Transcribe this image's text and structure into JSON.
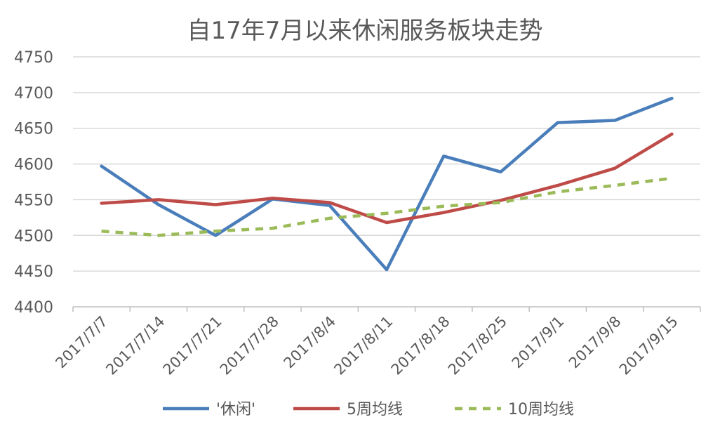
{
  "chart_data": {
    "type": "line",
    "title": "自17年7月以来休闲服务板块走势",
    "categories": [
      "2017/7/7",
      "2017/7/14",
      "2017/7/21",
      "2017/7/28",
      "2017/8/4",
      "2017/8/11",
      "2017/8/18",
      "2017/8/25",
      "2017/9/1",
      "2017/9/8",
      "2017/9/15"
    ],
    "ylim": [
      4400,
      4750
    ],
    "yticks": [
      4400,
      4450,
      4500,
      4550,
      4600,
      4650,
      4700,
      4750
    ],
    "grid": true,
    "legend_position": "bottom",
    "series": [
      {
        "name": "'休闲'",
        "color": "#4a7ebb",
        "style": "solid",
        "values": [
          4597,
          4543,
          4500,
          4551,
          4542,
          4452,
          4611,
          4589,
          4658,
          4661,
          4692
        ]
      },
      {
        "name": "5周均线",
        "color": "#be4b48",
        "style": "solid",
        "values": [
          4545,
          4550,
          4543,
          4552,
          4546,
          4518,
          4532,
          4549,
          4570,
          4594,
          4642
        ]
      },
      {
        "name": "10周均线",
        "color": "#9bbb59",
        "style": "dashed",
        "values": [
          4506,
          4500,
          4506,
          4510,
          4524,
          4531,
          4541,
          4546,
          4561,
          4570,
          4580
        ]
      }
    ]
  }
}
